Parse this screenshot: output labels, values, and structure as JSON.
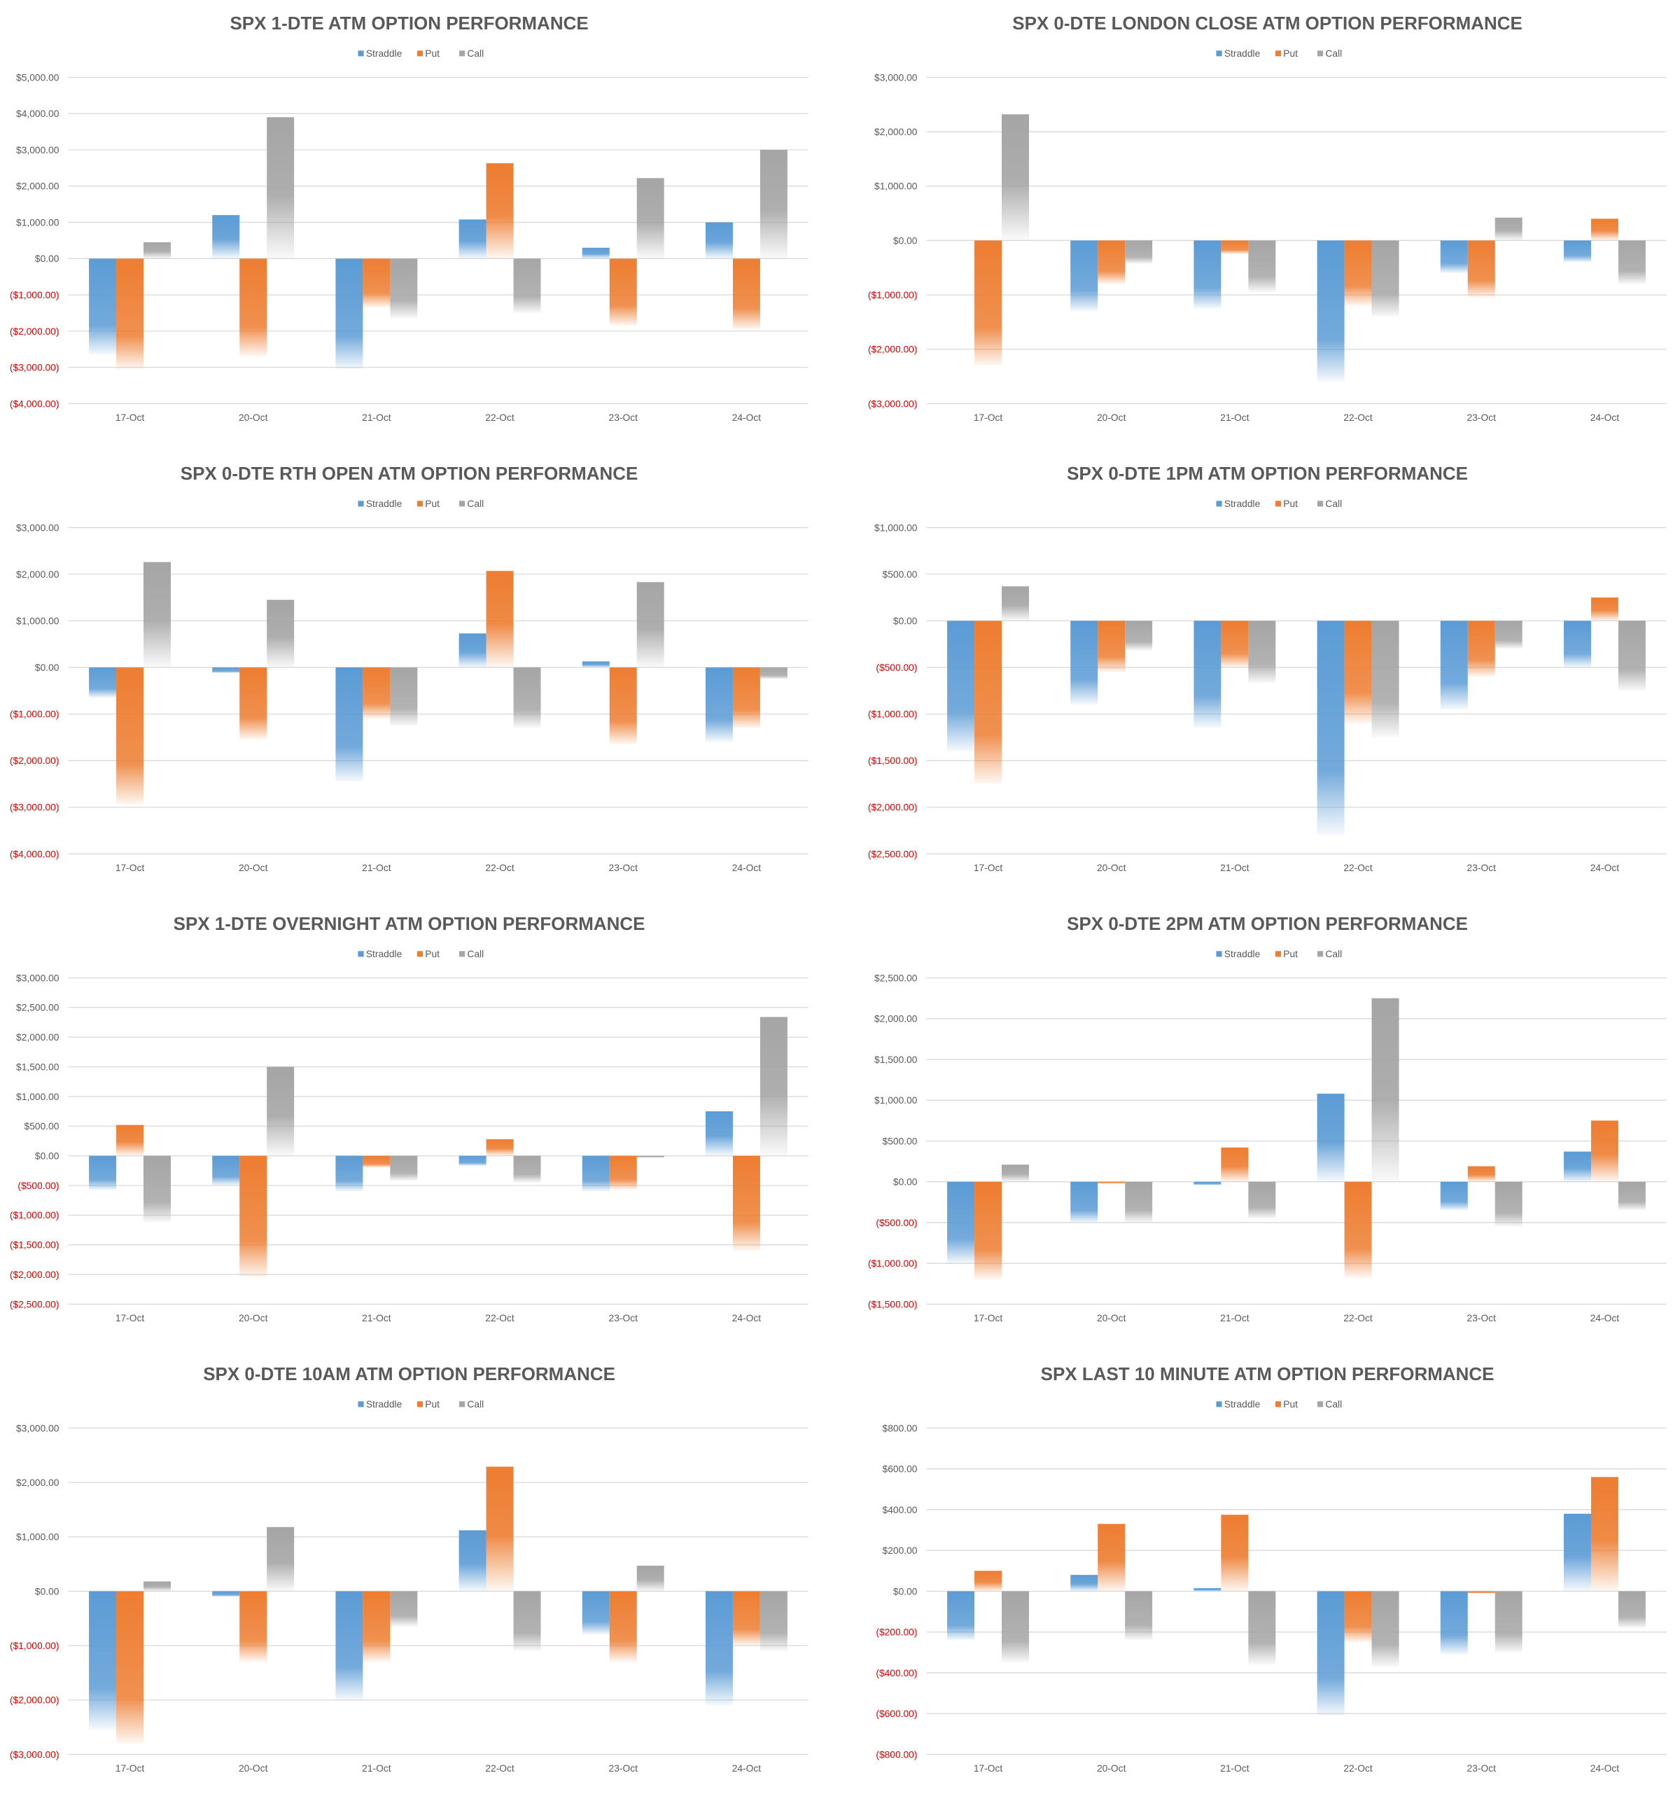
{
  "colors": {
    "straddle": "#5b9bd5",
    "put": "#ed7d31",
    "call": "#a5a5a5",
    "negative_tick": "#e00000",
    "gridline": "#d9d9d9",
    "text": "#595959"
  },
  "chart_data": [
    {
      "type": "bar",
      "title": "SPX 1-DTE ATM OPTION PERFORMANCE",
      "categories": [
        "17-Oct",
        "20-Oct",
        "21-Oct",
        "22-Oct",
        "23-Oct",
        "24-Oct"
      ],
      "series": [
        {
          "name": "Straddle",
          "color": "straddle",
          "values": [
            -2650,
            1200,
            -3050,
            1080,
            300,
            1000
          ]
        },
        {
          "name": "Put",
          "color": "put",
          "values": [
            -3050,
            -2700,
            -1350,
            2630,
            -1850,
            -1950
          ]
        },
        {
          "name": "Call",
          "color": "call",
          "values": [
            450,
            3900,
            -1650,
            -1500,
            2220,
            3000
          ]
        }
      ],
      "ylim": [
        -4000,
        5000
      ],
      "yticks": [
        5000,
        4000,
        3000,
        2000,
        1000,
        0,
        -1000,
        -2000,
        -3000,
        -4000
      ],
      "ytick_labels": [
        "$5,000.00",
        "$4,000.00",
        "$3,000.00",
        "$2,000.00",
        "$1,000.00",
        "$0.00",
        "($1,000.00)",
        "($2,000.00)",
        "($3,000.00)",
        "($4,000.00)"
      ],
      "legend": "top-center",
      "grid": true
    },
    {
      "type": "bar",
      "title": "SPX 0-DTE  LONDON CLOSE ATM OPTION PERFORMANCE",
      "categories": [
        "17-Oct",
        "20-Oct",
        "21-Oct",
        "22-Oct",
        "23-Oct",
        "24-Oct"
      ],
      "series": [
        {
          "name": "Straddle",
          "color": "straddle",
          "values": [
            0,
            -1300,
            -1250,
            -2600,
            -600,
            -400
          ]
        },
        {
          "name": "Put",
          "color": "put",
          "values": [
            -2300,
            -800,
            -250,
            -1200,
            -1050,
            400
          ]
        },
        {
          "name": "Call",
          "color": "call",
          "values": [
            2320,
            -430,
            -950,
            -1400,
            420,
            -800
          ]
        }
      ],
      "ylim": [
        -3000,
        3000
      ],
      "yticks": [
        3000,
        2000,
        1000,
        0,
        -1000,
        -2000,
        -3000
      ],
      "ytick_labels": [
        "$3,000.00",
        "$2,000.00",
        "$1,000.00",
        "$0.00",
        "($1,000.00)",
        "($2,000.00)",
        "($3,000.00)"
      ],
      "legend": "top-center",
      "grid": true
    },
    {
      "type": "bar",
      "title": "SPX 0-DTE RTH OPEN ATM OPTION PERFORMANCE",
      "categories": [
        "17-Oct",
        "20-Oct",
        "21-Oct",
        "22-Oct",
        "23-Oct",
        "24-Oct"
      ],
      "series": [
        {
          "name": "Straddle",
          "color": "straddle",
          "values": [
            -650,
            -120,
            -2450,
            730,
            130,
            -1600
          ]
        },
        {
          "name": "Put",
          "color": "put",
          "values": [
            -2950,
            -1550,
            -1100,
            2070,
            -1650,
            -1300
          ]
        },
        {
          "name": "Call",
          "color": "call",
          "values": [
            2260,
            1450,
            -1250,
            -1300,
            1830,
            -250
          ]
        }
      ],
      "ylim": [
        -4000,
        3000
      ],
      "yticks": [
        3000,
        2000,
        1000,
        0,
        -1000,
        -2000,
        -3000,
        -4000
      ],
      "ytick_labels": [
        "$3,000.00",
        "$2,000.00",
        "$1,000.00",
        "$0.00",
        "($1,000.00)",
        "($2,000.00)",
        "($3,000.00)",
        "($4,000.00)"
      ],
      "legend": "top-center",
      "grid": true
    },
    {
      "type": "bar",
      "title": "SPX 0-DTE 1PM ATM OPTION PERFORMANCE",
      "categories": [
        "17-Oct",
        "20-Oct",
        "21-Oct",
        "22-Oct",
        "23-Oct",
        "24-Oct"
      ],
      "series": [
        {
          "name": "Straddle",
          "color": "straddle",
          "values": [
            -1400,
            -900,
            -1150,
            -2300,
            -950,
            -500
          ]
        },
        {
          "name": "Put",
          "color": "put",
          "values": [
            -1750,
            -550,
            -500,
            -1100,
            -600,
            250
          ]
        },
        {
          "name": "Call",
          "color": "call",
          "values": [
            370,
            -320,
            -670,
            -1250,
            -300,
            -750
          ]
        }
      ],
      "ylim": [
        -2500,
        1000
      ],
      "yticks": [
        1000,
        500,
        0,
        -500,
        -1000,
        -1500,
        -2000,
        -2500
      ],
      "ytick_labels": [
        "$1,000.00",
        "$500.00",
        "$0.00",
        "($500.00)",
        "($1,000.00)",
        "($1,500.00)",
        "($2,000.00)",
        "($2,500.00)"
      ],
      "legend": "top-center",
      "grid": true
    },
    {
      "type": "bar",
      "title": "SPX 1-DTE OVERNIGHT ATM OPTION PERFORMANCE",
      "categories": [
        "17-Oct",
        "20-Oct",
        "21-Oct",
        "22-Oct",
        "23-Oct",
        "24-Oct"
      ],
      "series": [
        {
          "name": "Straddle",
          "color": "straddle",
          "values": [
            -580,
            -500,
            -600,
            -170,
            -600,
            750
          ]
        },
        {
          "name": "Put",
          "color": "put",
          "values": [
            520,
            -2050,
            -200,
            280,
            -570,
            -1600
          ]
        },
        {
          "name": "Call",
          "color": "call",
          "values": [
            -1120,
            1500,
            -420,
            -450,
            -30,
            2340
          ]
        }
      ],
      "ylim": [
        -2500,
        3000
      ],
      "yticks": [
        3000,
        2500,
        2000,
        1500,
        1000,
        500,
        0,
        -500,
        -1000,
        -1500,
        -2000,
        -2500
      ],
      "ytick_labels": [
        "$3,000.00",
        "$2,500.00",
        "$2,000.00",
        "$1,500.00",
        "$1,000.00",
        "$500.00",
        "$0.00",
        "($500.00)",
        "($1,000.00)",
        "($1,500.00)",
        "($2,000.00)",
        "($2,500.00)"
      ],
      "legend": "top-center",
      "grid": true
    },
    {
      "type": "bar",
      "title": "SPX 0-DTE 2PM ATM OPTION PERFORMANCE",
      "categories": [
        "17-Oct",
        "20-Oct",
        "21-Oct",
        "22-Oct",
        "23-Oct",
        "24-Oct"
      ],
      "series": [
        {
          "name": "Straddle",
          "color": "straddle",
          "values": [
            -1000,
            -500,
            -40,
            1080,
            -350,
            370
          ]
        },
        {
          "name": "Put",
          "color": "put",
          "values": [
            -1200,
            -20,
            420,
            -1180,
            190,
            750
          ]
        },
        {
          "name": "Call",
          "color": "call",
          "values": [
            210,
            -500,
            -450,
            2250,
            -550,
            -350
          ]
        }
      ],
      "ylim": [
        -1500,
        2500
      ],
      "yticks": [
        2500,
        2000,
        1500,
        1000,
        500,
        0,
        -500,
        -1000,
        -1500
      ],
      "ytick_labels": [
        "$2,500.00",
        "$2,000.00",
        "$1,500.00",
        "$1,000.00",
        "$500.00",
        "$0.00",
        "($500.00)",
        "($1,000.00)",
        "($1,500.00)"
      ],
      "legend": "top-center",
      "grid": true
    },
    {
      "type": "bar",
      "title": "SPX 0-DTE 10AM ATM OPTION PERFORMANCE",
      "categories": [
        "17-Oct",
        "20-Oct",
        "21-Oct",
        "22-Oct",
        "23-Oct",
        "24-Oct"
      ],
      "series": [
        {
          "name": "Straddle",
          "color": "straddle",
          "values": [
            -2550,
            -100,
            -2000,
            1120,
            -800,
            -2100
          ]
        },
        {
          "name": "Put",
          "color": "put",
          "values": [
            -2800,
            -1300,
            -1300,
            2290,
            -1300,
            -1000
          ]
        },
        {
          "name": "Call",
          "color": "call",
          "values": [
            180,
            1180,
            -650,
            -1100,
            470,
            -1100
          ]
        }
      ],
      "ylim": [
        -3000,
        3000
      ],
      "yticks": [
        3000,
        2000,
        1000,
        0,
        -1000,
        -2000,
        -3000
      ],
      "ytick_labels": [
        "$3,000.00",
        "$2,000.00",
        "$1,000.00",
        "$0.00",
        "($1,000.00)",
        "($2,000.00)",
        "($3,000.00)"
      ],
      "legend": "top-center",
      "grid": true
    },
    {
      "type": "bar",
      "title": "SPX LAST 10 MINUTE ATM OPTION PERFORMANCE",
      "categories": [
        "17-Oct",
        "20-Oct",
        "21-Oct",
        "22-Oct",
        "23-Oct",
        "24-Oct"
      ],
      "series": [
        {
          "name": "Straddle",
          "color": "straddle",
          "values": [
            -240,
            80,
            15,
            -610,
            -310,
            380
          ]
        },
        {
          "name": "Put",
          "color": "put",
          "values": [
            100,
            330,
            375,
            -250,
            -10,
            560
          ]
        },
        {
          "name": "Call",
          "color": "call",
          "values": [
            -350,
            -240,
            -360,
            -370,
            -300,
            -180
          ]
        }
      ],
      "ylim": [
        -800,
        800
      ],
      "yticks": [
        800,
        600,
        400,
        200,
        0,
        -200,
        -400,
        -600,
        -800
      ],
      "ytick_labels": [
        "$800.00",
        "$600.00",
        "$400.00",
        "$200.00",
        "$0.00",
        "($200.00)",
        "($400.00)",
        "($600.00)",
        "($800.00)"
      ],
      "legend": "top-center",
      "grid": true
    }
  ]
}
